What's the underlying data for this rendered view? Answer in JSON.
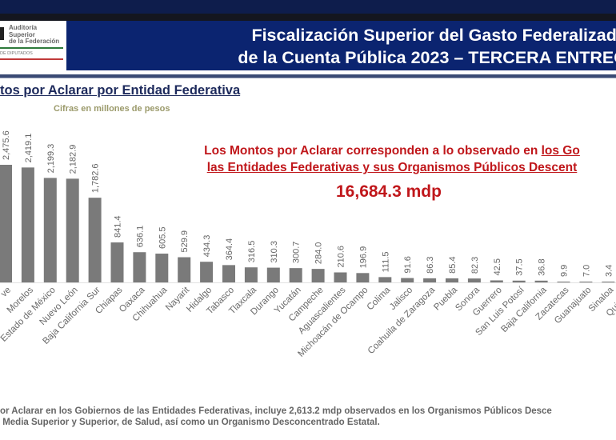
{
  "header": {
    "title_line1": "Fiscalización Superior del Gasto Federalizado",
    "title_line2": "de la Cuenta Pública 2023 – TERCERA ENTREG",
    "logo_text": "Auditoría Superior de la Federación",
    "logo_subtext": "DE DIPUTADOS"
  },
  "subtitle": "tos por Aclarar por Entidad Federativa",
  "units": "Cifras en millones de pesos",
  "note": {
    "line1_plain": "Los Montos por Aclarar corresponden a lo observado en ",
    "line1_underlined": "los Go",
    "line2_underlined": "las Entidades Federativas y sus Organismos Públicos Descent",
    "total": "16,684.3 mdp"
  },
  "footnote": {
    "line1": "or Aclarar en los Gobiernos de las Entidades Federativas, incluye 2,613.2 mdp observados en los Organismos Públicos Desce",
    "line2": " Media Superior y Superior, de Salud, así como un Organismo Desconcentrado Estatal."
  },
  "colors": {
    "bar": "#7a7a7a",
    "header": "#0b2470",
    "accent_red": "#c0171b",
    "subtitle": "#1d2a5c"
  },
  "chart_data": {
    "type": "bar",
    "categories": [
      "ve",
      "Morelos",
      "Estado de México",
      "Nuevo León",
      "Baja California Sur",
      "Chiapas",
      "Oaxaca",
      "Chihuahua",
      "Nayarit",
      "Hidalgo",
      "Tabasco",
      "Tlaxcala",
      "Durango",
      "Yucatán",
      "Campeche",
      "Aguascalientes",
      "Michoacán de Ocampo",
      "Colima",
      "Jalisco",
      "Coahuila de Zaragoza",
      "Puebla",
      "Sonora",
      "Guerrero",
      "San Luis Potosí",
      "Baja California",
      "Zacatecas",
      "Guanajuato",
      "Sinaloa",
      "Quintana"
    ],
    "values": [
      2475.6,
      2419.1,
      2199.3,
      2182.9,
      1782.6,
      841.4,
      636.1,
      605.5,
      529.9,
      434.3,
      364.4,
      316.5,
      310.3,
      300.7,
      284.0,
      210.6,
      196.9,
      111.5,
      91.6,
      86.3,
      85.4,
      82.3,
      42.5,
      37.5,
      36.8,
      9.9,
      7.0,
      3.4,
      null
    ],
    "value_labels": [
      "2,475.6",
      "2,419.1",
      "2,199.3",
      "2,182.9",
      "1,782.6",
      "841.4",
      "636.1",
      "605.5",
      "529.9",
      "434.3",
      "364.4",
      "316.5",
      "310.3",
      "300.7",
      "284.0",
      "210.6",
      "196.9",
      "111.5",
      "91.6",
      "86.3",
      "85.4",
      "82.3",
      "42.5",
      "37.5",
      "36.8",
      "9.9",
      "7.0",
      "3.4",
      null
    ],
    "grid": false,
    "legend": "none"
  }
}
